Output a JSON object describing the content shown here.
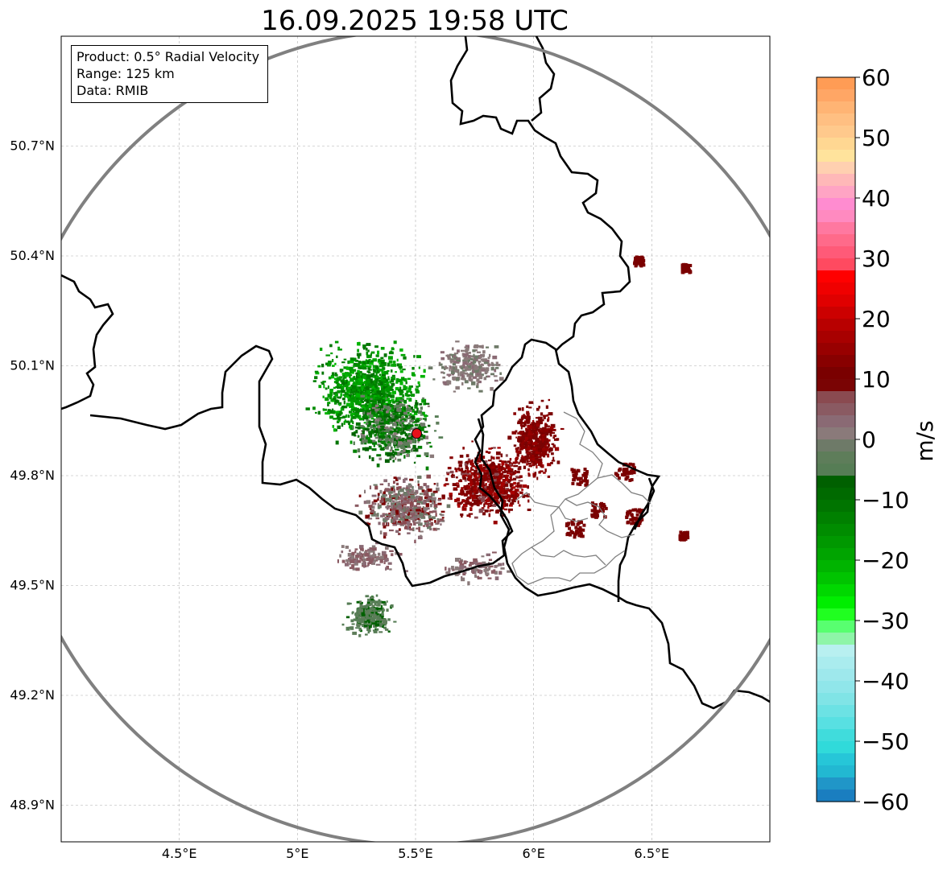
{
  "title": "16.09.2025 19:58 UTC",
  "info": {
    "product": "Product: 0.5° Radial Velocity",
    "range": "Range: 125 km",
    "data": "Data: RMIB"
  },
  "map": {
    "extent": {
      "lon": [
        4.0,
        7.0
      ],
      "lat": [
        48.8,
        51.0
      ]
    },
    "radar_site": {
      "lon": 5.505,
      "lat": 49.915
    },
    "range_ring_color": "#808080",
    "radar_marker_color": "#e8101a",
    "lon_ticks": [
      {
        "value": 4.5,
        "label": "4.5°E"
      },
      {
        "value": 5.0,
        "label": "5°E"
      },
      {
        "value": 5.5,
        "label": "5.5°E"
      },
      {
        "value": 6.0,
        "label": "6°E"
      },
      {
        "value": 6.5,
        "label": "6.5°E"
      }
    ],
    "lat_ticks": [
      {
        "value": 48.9,
        "label": "48.9°N"
      },
      {
        "value": 49.2,
        "label": "49.2°N"
      },
      {
        "value": 49.5,
        "label": "49.5°N"
      },
      {
        "value": 49.8,
        "label": "49.8°N"
      },
      {
        "value": 50.1,
        "label": "50.1°N"
      },
      {
        "value": 50.4,
        "label": "50.4°N"
      },
      {
        "value": 50.7,
        "label": "50.7°N"
      }
    ]
  },
  "colorbar": {
    "label": "m/s",
    "min": -60,
    "max": 60,
    "ticks": [
      {
        "value": 60,
        "label": "60"
      },
      {
        "value": 50,
        "label": "50"
      },
      {
        "value": 40,
        "label": "40"
      },
      {
        "value": 30,
        "label": "30"
      },
      {
        "value": 20,
        "label": "20"
      },
      {
        "value": 10,
        "label": "10"
      },
      {
        "value": 0,
        "label": "0"
      },
      {
        "value": -10,
        "label": "−10"
      },
      {
        "value": -20,
        "label": "−20"
      },
      {
        "value": -30,
        "label": "−30"
      },
      {
        "value": -40,
        "label": "−40"
      },
      {
        "value": -50,
        "label": "−50"
      },
      {
        "value": -60,
        "label": "−60"
      }
    ],
    "stops": [
      {
        "from": 58,
        "to": 60,
        "color": "#ff9c55"
      },
      {
        "from": 56,
        "to": 58,
        "color": "#ffa665"
      },
      {
        "from": 54,
        "to": 56,
        "color": "#ffb474"
      },
      {
        "from": 52,
        "to": 54,
        "color": "#ffbf82"
      },
      {
        "from": 50,
        "to": 52,
        "color": "#ffc98c"
      },
      {
        "from": 48,
        "to": 50,
        "color": "#ffd792"
      },
      {
        "from": 46,
        "to": 48,
        "color": "#ffe39c"
      },
      {
        "from": 44,
        "to": 46,
        "color": "#ffd0b0"
      },
      {
        "from": 42,
        "to": 44,
        "color": "#ffb8b8"
      },
      {
        "from": 40,
        "to": 42,
        "color": "#ffa4c4"
      },
      {
        "from": 38,
        "to": 40,
        "color": "#ff8cd0"
      },
      {
        "from": 36,
        "to": 38,
        "color": "#ff8ac0"
      },
      {
        "from": 34,
        "to": 36,
        "color": "#ff78a0"
      },
      {
        "from": 32,
        "to": 34,
        "color": "#ff6a8a"
      },
      {
        "from": 30,
        "to": 32,
        "color": "#ff5a78"
      },
      {
        "from": 28,
        "to": 30,
        "color": "#ff4a60"
      },
      {
        "from": 26,
        "to": 28,
        "color": "#ff0000"
      },
      {
        "from": 24,
        "to": 26,
        "color": "#f00000"
      },
      {
        "from": 22,
        "to": 24,
        "color": "#e00000"
      },
      {
        "from": 20,
        "to": 22,
        "color": "#cc0000"
      },
      {
        "from": 18,
        "to": 20,
        "color": "#b80000"
      },
      {
        "from": 16,
        "to": 18,
        "color": "#a80000"
      },
      {
        "from": 14,
        "to": 16,
        "color": "#980000"
      },
      {
        "from": 12,
        "to": 14,
        "color": "#880000"
      },
      {
        "from": 10,
        "to": 12,
        "color": "#7a0000"
      },
      {
        "from": 8,
        "to": 10,
        "color": "#7a0404"
      },
      {
        "from": 6,
        "to": 8,
        "color": "#8a4a50"
      },
      {
        "from": 4,
        "to": 6,
        "color": "#8a5a62"
      },
      {
        "from": 2,
        "to": 4,
        "color": "#8a6a74"
      },
      {
        "from": 0,
        "to": 2,
        "color": "#8a7a7a"
      },
      {
        "from": -2,
        "to": 0,
        "color": "#6e7a68"
      },
      {
        "from": -4,
        "to": -2,
        "color": "#5e7d5a"
      },
      {
        "from": -6,
        "to": -4,
        "color": "#567d55"
      },
      {
        "from": -8,
        "to": -6,
        "color": "#006000"
      },
      {
        "from": -10,
        "to": -8,
        "color": "#006a00"
      },
      {
        "from": -12,
        "to": -10,
        "color": "#007400"
      },
      {
        "from": -14,
        "to": -12,
        "color": "#008000"
      },
      {
        "from": -16,
        "to": -14,
        "color": "#008c00"
      },
      {
        "from": -18,
        "to": -16,
        "color": "#009800"
      },
      {
        "from": -20,
        "to": -18,
        "color": "#00a400"
      },
      {
        "from": -22,
        "to": -20,
        "color": "#00b400"
      },
      {
        "from": -24,
        "to": -22,
        "color": "#00c400"
      },
      {
        "from": -26,
        "to": -24,
        "color": "#00d800"
      },
      {
        "from": -28,
        "to": -26,
        "color": "#00ee00"
      },
      {
        "from": -30,
        "to": -28,
        "color": "#20ff20"
      },
      {
        "from": -32,
        "to": -30,
        "color": "#58ff70"
      },
      {
        "from": -34,
        "to": -32,
        "color": "#8ef5a8"
      },
      {
        "from": -36,
        "to": -34,
        "color": "#b8f0f0"
      },
      {
        "from": -38,
        "to": -36,
        "color": "#aaecee"
      },
      {
        "from": -40,
        "to": -38,
        "color": "#9ee8ec"
      },
      {
        "from": -42,
        "to": -40,
        "color": "#90e6ea"
      },
      {
        "from": -44,
        "to": -42,
        "color": "#80e4e6"
      },
      {
        "from": -46,
        "to": -44,
        "color": "#6ce2e4"
      },
      {
        "from": -48,
        "to": -46,
        "color": "#58e0e2"
      },
      {
        "from": -50,
        "to": -48,
        "color": "#40dcdc"
      },
      {
        "from": -52,
        "to": -50,
        "color": "#30dada"
      },
      {
        "from": -54,
        "to": -52,
        "color": "#26c6d8"
      },
      {
        "from": -56,
        "to": -54,
        "color": "#22b8d2"
      },
      {
        "from": -58,
        "to": -56,
        "color": "#2096c8"
      },
      {
        "from": -60,
        "to": -58,
        "color": "#1a7ec0"
      }
    ]
  }
}
